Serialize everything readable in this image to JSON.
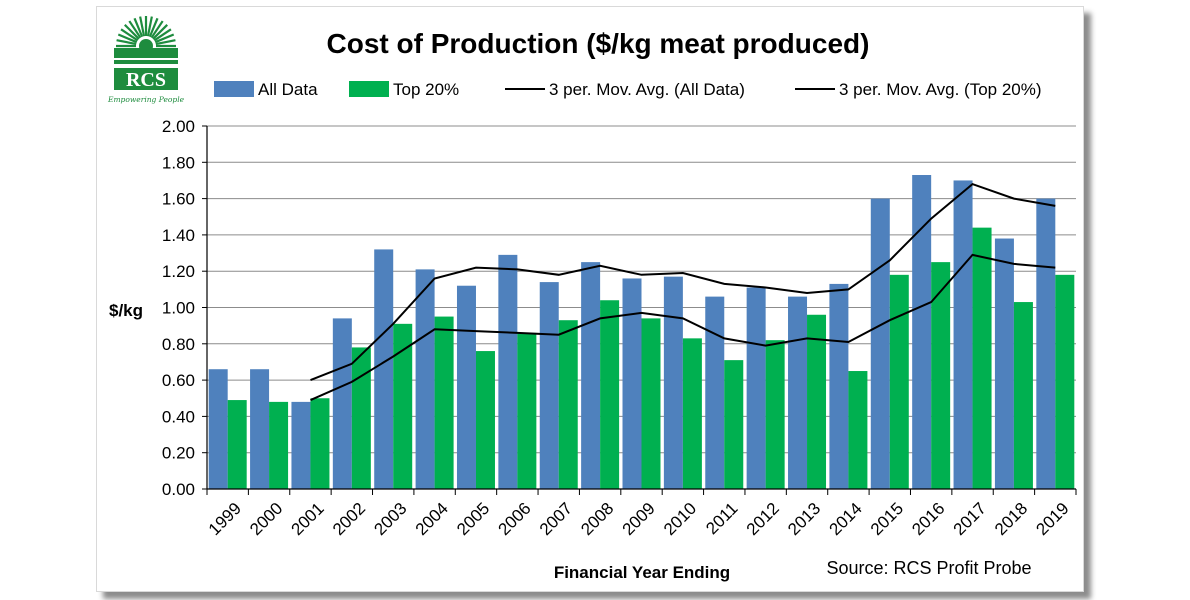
{
  "logo": {
    "text": "RCS",
    "tagline": "Empowering People",
    "color": "#1e8c3e"
  },
  "chart_data": {
    "type": "bar",
    "title": "Cost of Production ($/kg meat produced)",
    "xlabel": "Financial Year Ending",
    "ylabel": "$/kg",
    "ylim": [
      0,
      2.0
    ],
    "yticks": [
      "0.00",
      "0.20",
      "0.40",
      "0.60",
      "0.80",
      "1.00",
      "1.20",
      "1.40",
      "1.60",
      "1.80",
      "2.00"
    ],
    "grid": true,
    "legend_position": "top",
    "categories": [
      "1999",
      "2000",
      "2001",
      "2002",
      "2003",
      "2004",
      "2005",
      "2006",
      "2007",
      "2008",
      "2009",
      "2010",
      "2011",
      "2012",
      "2013",
      "2014",
      "2015",
      "2016",
      "2017",
      "2018",
      "2019"
    ],
    "series": [
      {
        "name": "All Data",
        "kind": "bar",
        "color": "#4f81bd",
        "values": [
          0.66,
          0.66,
          0.48,
          0.94,
          1.32,
          1.21,
          1.12,
          1.29,
          1.14,
          1.25,
          1.16,
          1.17,
          1.06,
          1.11,
          1.06,
          1.13,
          1.6,
          1.73,
          1.7,
          1.38,
          1.6
        ]
      },
      {
        "name": "Top 20%",
        "kind": "bar",
        "color": "#00b050",
        "values": [
          0.49,
          0.48,
          0.5,
          0.78,
          0.91,
          0.95,
          0.76,
          0.86,
          0.93,
          1.04,
          0.94,
          0.83,
          0.71,
          0.82,
          0.96,
          0.65,
          1.18,
          1.25,
          1.44,
          1.03,
          1.18
        ]
      },
      {
        "name": "3 per. Mov. Avg. (All Data)",
        "kind": "line",
        "color": "#000000",
        "values": [
          null,
          null,
          0.6,
          0.69,
          0.91,
          1.16,
          1.22,
          1.21,
          1.18,
          1.23,
          1.18,
          1.19,
          1.13,
          1.11,
          1.08,
          1.1,
          1.26,
          1.49,
          1.68,
          1.6,
          1.56
        ]
      },
      {
        "name": "3 per. Mov. Avg. (Top 20%)",
        "kind": "line",
        "color": "#000000",
        "values": [
          null,
          null,
          0.49,
          0.59,
          0.73,
          0.88,
          0.87,
          0.86,
          0.85,
          0.94,
          0.97,
          0.94,
          0.83,
          0.79,
          0.83,
          0.81,
          0.93,
          1.03,
          1.29,
          1.24,
          1.22
        ]
      }
    ],
    "source": "Source: RCS Profit Probe"
  }
}
